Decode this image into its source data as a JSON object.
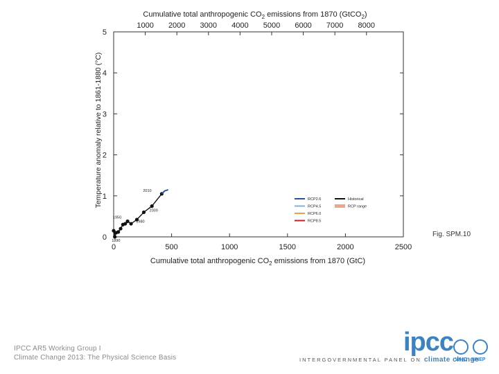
{
  "chart_data": {
    "type": "line",
    "title_prefix": "Cumulative total anthropogenic CO",
    "title_sub": "2",
    "title_mid": " emissions from 1870 (GtCO",
    "title_sub2": "2",
    "title_end": ")",
    "top_ticks": [
      "1000",
      "2000",
      "3000",
      "4000",
      "5000",
      "6000",
      "7000",
      "8000"
    ],
    "top_tick_values_gtco2": [
      1000,
      2000,
      3000,
      4000,
      5000,
      6000,
      7000,
      8000
    ],
    "xlabel_prefix": "Cumulative total anthropogenic CO",
    "xlabel_sub": "2",
    "xlabel_end": " emissions from 1870 (GtC)",
    "ylabel": "Temperature anomaly relative to 1861-1880 (°C)",
    "xlim": [
      0,
      2500
    ],
    "ylim": [
      0,
      5
    ],
    "x_ticks": [
      "0",
      "500",
      "1000",
      "1500",
      "2000",
      "2500"
    ],
    "x_tick_values": [
      0,
      500,
      1000,
      1500,
      2000,
      2500
    ],
    "y_ticks": [
      "0",
      "1",
      "2",
      "3",
      "4",
      "5"
    ],
    "y_tick_values": [
      0,
      1,
      2,
      3,
      4,
      5
    ],
    "series": [
      {
        "name": "Historical",
        "color": "#111111",
        "x": [
          0,
          10,
          20,
          40,
          60,
          80,
          100,
          120,
          150,
          200,
          260,
          330,
          415
        ],
        "y": [
          0.15,
          0.0,
          0.1,
          0.12,
          0.2,
          0.3,
          0.32,
          0.38,
          0.32,
          0.42,
          0.6,
          0.75,
          1.05
        ],
        "labels": [
          {
            "text": "1890",
            "x": 20,
            "y": -0.12
          },
          {
            "text": "1950",
            "x": 30,
            "y": 0.45
          },
          {
            "text": "1980",
            "x": 230,
            "y": 0.35
          },
          {
            "text": "2000",
            "x": 345,
            "y": 0.62
          },
          {
            "text": "2010",
            "x": 290,
            "y": 1.1
          }
        ]
      },
      {
        "name": "RCP2.6",
        "color": "#2a4fa8",
        "x": [
          415,
          440,
          470
        ],
        "y": [
          1.05,
          1.12,
          1.15
        ]
      }
    ],
    "legend": [
      {
        "name": "RCP2.6",
        "color": "#2a4fa8"
      },
      {
        "name": "RCP4.5",
        "color": "#7fb2e0"
      },
      {
        "name": "RCP6.0",
        "color": "#e8a43a"
      },
      {
        "name": "RCP8.5",
        "color": "#c0202a"
      },
      {
        "name": "Historical",
        "color": "#111111"
      },
      {
        "name": "RCP range",
        "color": "#f0a58a"
      }
    ],
    "legend_position": "bottom-right",
    "grid": false
  },
  "fig_label": "Fig. SPM.10",
  "footer": {
    "line1": "IPCC AR5 Working Group I",
    "line2": "Climate Change 2013: The Physical Science Basis"
  },
  "logo": {
    "main": "ipcc",
    "tagline_prefix": "INTERGOVERNMENTAL PANEL ON ",
    "tagline_highlight": "climate change",
    "org1": "WHO",
    "org2": "UNEP"
  }
}
